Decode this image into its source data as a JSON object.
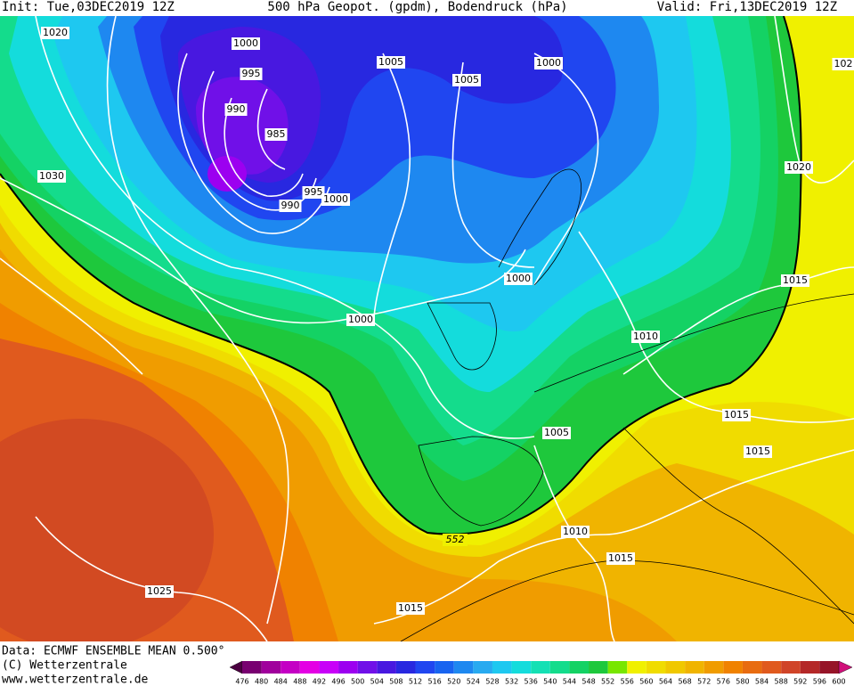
{
  "header": {
    "init": "Init: Tue,03DEC2019 12Z",
    "title": "500 hPa Geopot. (gpdm), Bodendruck (hPa)",
    "valid": "Valid: Fri,13DEC2019 12Z"
  },
  "isobar_labels": [
    1020,
    1000,
    995,
    990,
    985,
    995,
    1000,
    990,
    1005,
    1005,
    1000,
    102,
    1030,
    1020,
    1000,
    1000,
    1015,
    1010,
    1015,
    1015,
    1005,
    1010,
    1015,
    1015,
    1025
  ],
  "contour_label": 552,
  "footer": {
    "data": "Data: ECMWF ENSEMBLE MEAN 0.500°",
    "copyright": "(C) Wetterzentrale",
    "url": "www.wetterzentrale.de"
  },
  "legend": {
    "values": [
      476,
      480,
      484,
      488,
      492,
      496,
      500,
      504,
      508,
      512,
      516,
      520,
      524,
      528,
      532,
      536,
      540,
      544,
      548,
      552,
      556,
      560,
      564,
      568,
      572,
      576,
      580,
      584,
      588,
      592,
      596,
      600
    ],
    "colors": [
      "#4a0040",
      "#780070",
      "#a0009c",
      "#c400c4",
      "#e400e4",
      "#c800f8",
      "#9c00f0",
      "#7010e8",
      "#4818e0",
      "#2828e0",
      "#2046f0",
      "#1864f0",
      "#1e88f0",
      "#28aaf0",
      "#1ec8f0",
      "#14dcdc",
      "#14e0b4",
      "#14dc8c",
      "#14d264",
      "#1ec83c",
      "#78e600",
      "#f0f000",
      "#f0dc00",
      "#f0c800",
      "#f0b400",
      "#f09c00",
      "#f08200",
      "#e86c10",
      "#e05a1e",
      "#d04428",
      "#b42828",
      "#961428",
      "#d0107a"
    ]
  }
}
